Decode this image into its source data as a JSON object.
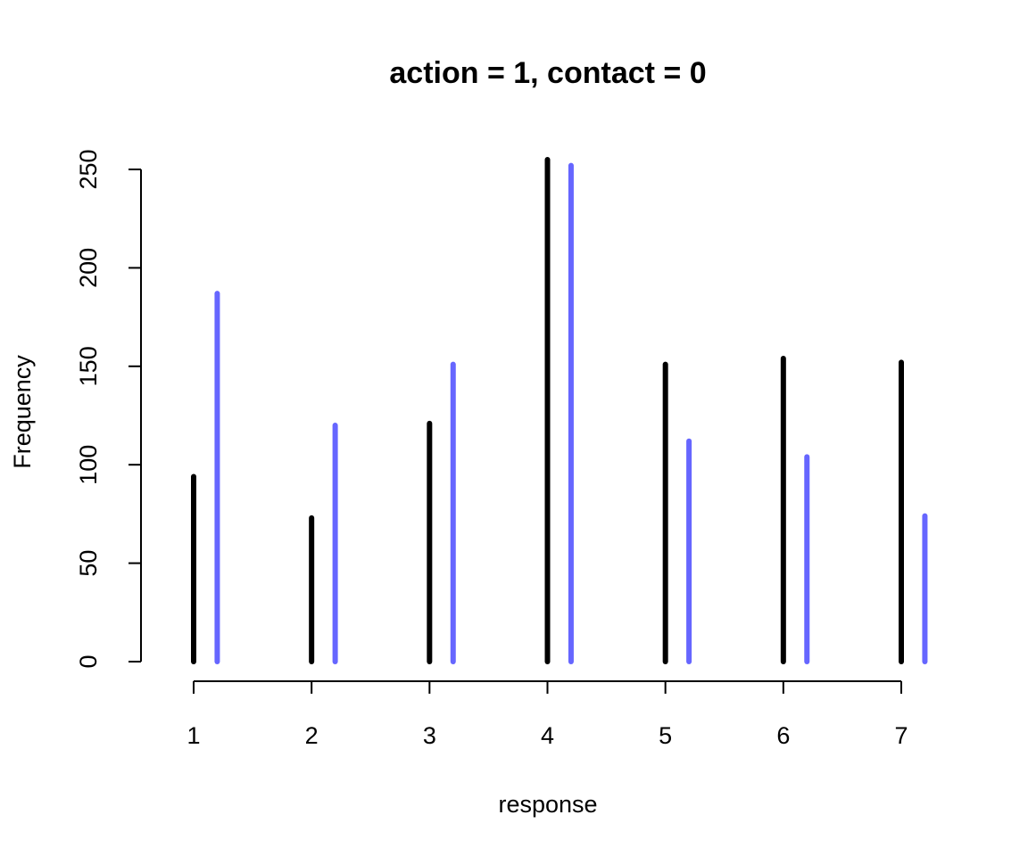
{
  "chart_data": {
    "type": "bar",
    "title": "action = 1, contact = 0",
    "xlabel": "response",
    "ylabel": "Frequency",
    "categories": [
      "1",
      "2",
      "3",
      "4",
      "5",
      "6",
      "7"
    ],
    "x_offset_second_series": 0.2,
    "xlim": [
      1,
      7
    ],
    "ylim": [
      0,
      250
    ],
    "yticks": [
      "0",
      "50",
      "100",
      "150",
      "200",
      "250"
    ],
    "series": [
      {
        "color": "#000000",
        "values": [
          94,
          73,
          121,
          255,
          151,
          154,
          152
        ]
      },
      {
        "color": "#6666ff",
        "values": [
          187,
          120,
          151,
          252,
          112,
          104,
          74
        ]
      }
    ],
    "grid": false,
    "legend": "none"
  }
}
